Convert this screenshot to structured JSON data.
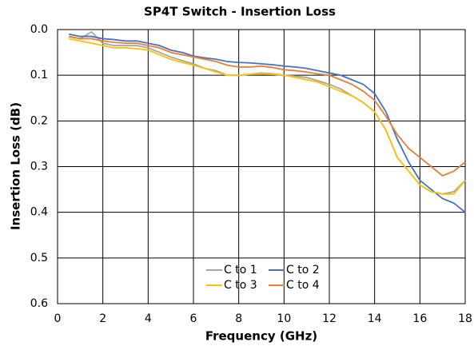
{
  "chart_data": {
    "type": "line",
    "title": "SP4T Switch - Insertion Loss",
    "xlabel": "Frequency (GHz)",
    "ylabel": "Insertion Loss (dB)",
    "x": [
      0.5,
      1,
      1.5,
      2,
      2.5,
      3,
      3.5,
      4,
      4.5,
      5,
      5.5,
      6,
      6.5,
      7,
      7.5,
      8,
      8.5,
      9,
      9.5,
      10,
      10.5,
      11,
      11.5,
      12,
      12.5,
      13,
      13.5,
      14,
      14.5,
      15,
      15.5,
      16,
      16.5,
      17,
      17.5,
      18
    ],
    "series": [
      {
        "name": "C to 1",
        "color": "#a5a5a5",
        "values": [
          0.015,
          0.02,
          0.005,
          0.03,
          0.035,
          0.035,
          0.035,
          0.04,
          0.05,
          0.06,
          0.068,
          0.075,
          0.085,
          0.09,
          0.1,
          0.1,
          0.098,
          0.095,
          0.097,
          0.1,
          0.102,
          0.105,
          0.112,
          0.12,
          0.13,
          0.145,
          0.16,
          0.18,
          0.22,
          0.28,
          0.31,
          0.34,
          0.355,
          0.36,
          0.355,
          0.33
        ]
      },
      {
        "name": "C to 2",
        "color": "#4472c4",
        "values": [
          0.01,
          0.015,
          0.015,
          0.02,
          0.022,
          0.025,
          0.025,
          0.03,
          0.035,
          0.045,
          0.05,
          0.058,
          0.062,
          0.065,
          0.07,
          0.072,
          0.073,
          0.075,
          0.077,
          0.08,
          0.082,
          0.085,
          0.09,
          0.095,
          0.1,
          0.11,
          0.12,
          0.14,
          0.18,
          0.24,
          0.29,
          0.33,
          0.35,
          0.37,
          0.38,
          0.4
        ]
      },
      {
        "name": "C to 3",
        "color": "#ffc000",
        "values": [
          0.02,
          0.025,
          0.03,
          0.035,
          0.04,
          0.04,
          0.042,
          0.045,
          0.055,
          0.065,
          0.072,
          0.078,
          0.085,
          0.093,
          0.1,
          0.1,
          0.098,
          0.097,
          0.098,
          0.1,
          0.105,
          0.11,
          0.115,
          0.125,
          0.135,
          0.145,
          0.16,
          0.18,
          0.22,
          0.28,
          0.31,
          0.34,
          0.355,
          0.36,
          0.36,
          0.33
        ]
      },
      {
        "name": "C to 4",
        "color": "#ed7d31",
        "values": [
          0.015,
          0.02,
          0.02,
          0.025,
          0.028,
          0.03,
          0.03,
          0.035,
          0.04,
          0.05,
          0.055,
          0.06,
          0.065,
          0.07,
          0.078,
          0.082,
          0.082,
          0.08,
          0.083,
          0.088,
          0.09,
          0.093,
          0.097,
          0.1,
          0.11,
          0.12,
          0.135,
          0.155,
          0.19,
          0.23,
          0.26,
          0.28,
          0.3,
          0.32,
          0.31,
          0.29
        ]
      }
    ],
    "xlim": [
      0,
      18
    ],
    "xticks": [
      0,
      2,
      4,
      6,
      8,
      10,
      12,
      14,
      16,
      18
    ],
    "ylim": [
      0,
      0.6
    ],
    "yticks": [
      {
        "value": 0,
        "label": "0.0"
      },
      0.1,
      0.2,
      0.3,
      0.4,
      0.5,
      0.6
    ],
    "y_inverted": true,
    "grid": true,
    "legend": "lower center"
  }
}
